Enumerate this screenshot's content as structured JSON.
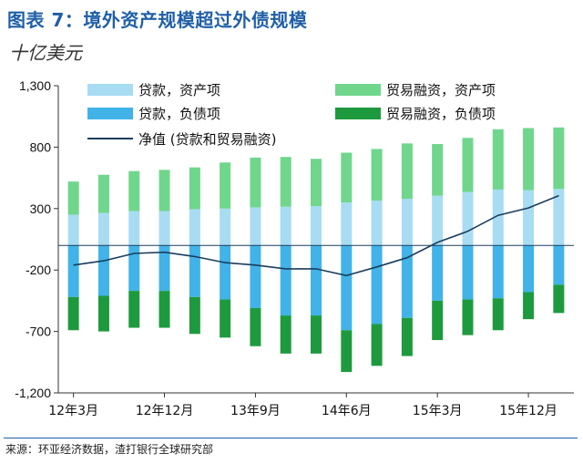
{
  "title": "图表 7：境外资产规模超过外债规模",
  "unit_label": "十亿美元",
  "source": "来源：环亚经济数据，渣打银行全球研究部",
  "chart_data": {
    "type": "bar",
    "stacked": true,
    "categories": [
      "12年3月",
      "12年6月",
      "12年9月",
      "12年12月",
      "13年3月",
      "13年6月",
      "13年9月",
      "13年12月",
      "14年3月",
      "14年6月",
      "14年9月",
      "14年12月",
      "15年3月",
      "15年6月",
      "15年9月",
      "15年12月",
      "16年3月"
    ],
    "xtick_labels": [
      "12年3月",
      "12年12月",
      "13年9月",
      "14年6月",
      "15年3月",
      "15年12月"
    ],
    "xtick_indices": [
      0,
      3,
      6,
      9,
      12,
      15
    ],
    "yticks": [
      1300,
      800,
      300,
      -200,
      -700,
      -1200
    ],
    "ylim": [
      -1200,
      1300
    ],
    "series": [
      {
        "name": "贷款，资产项",
        "color": "#a8dcf2",
        "values": [
          250,
          265,
          280,
          280,
          295,
          300,
          310,
          315,
          320,
          350,
          365,
          380,
          405,
          435,
          455,
          450,
          460
        ]
      },
      {
        "name": "贸易融资，资产项",
        "color": "#6fd68c",
        "values": [
          270,
          310,
          325,
          335,
          340,
          375,
          405,
          405,
          385,
          405,
          420,
          450,
          420,
          440,
          490,
          505,
          500
        ]
      },
      {
        "name": "贷款，负债项",
        "color": "#41b3e8",
        "values": [
          -420,
          -410,
          -370,
          -370,
          -420,
          -440,
          -510,
          -570,
          -570,
          -690,
          -640,
          -590,
          -450,
          -440,
          -430,
          -380,
          -320
        ]
      },
      {
        "name": "贸易融资，负债项",
        "color": "#1e9a3e",
        "values": [
          -270,
          -290,
          -300,
          -300,
          -300,
          -310,
          -310,
          -310,
          -310,
          -340,
          -340,
          -310,
          -320,
          -290,
          -260,
          -220,
          -230
        ]
      }
    ],
    "line": {
      "name": "净值 (贷款和贸易融资)",
      "color": "#1b3d5e",
      "values": [
        -160,
        -125,
        -65,
        -55,
        -90,
        -140,
        -160,
        -190,
        -190,
        -245,
        -175,
        -100,
        25,
        115,
        245,
        305,
        405
      ]
    },
    "legend_position": "top"
  }
}
